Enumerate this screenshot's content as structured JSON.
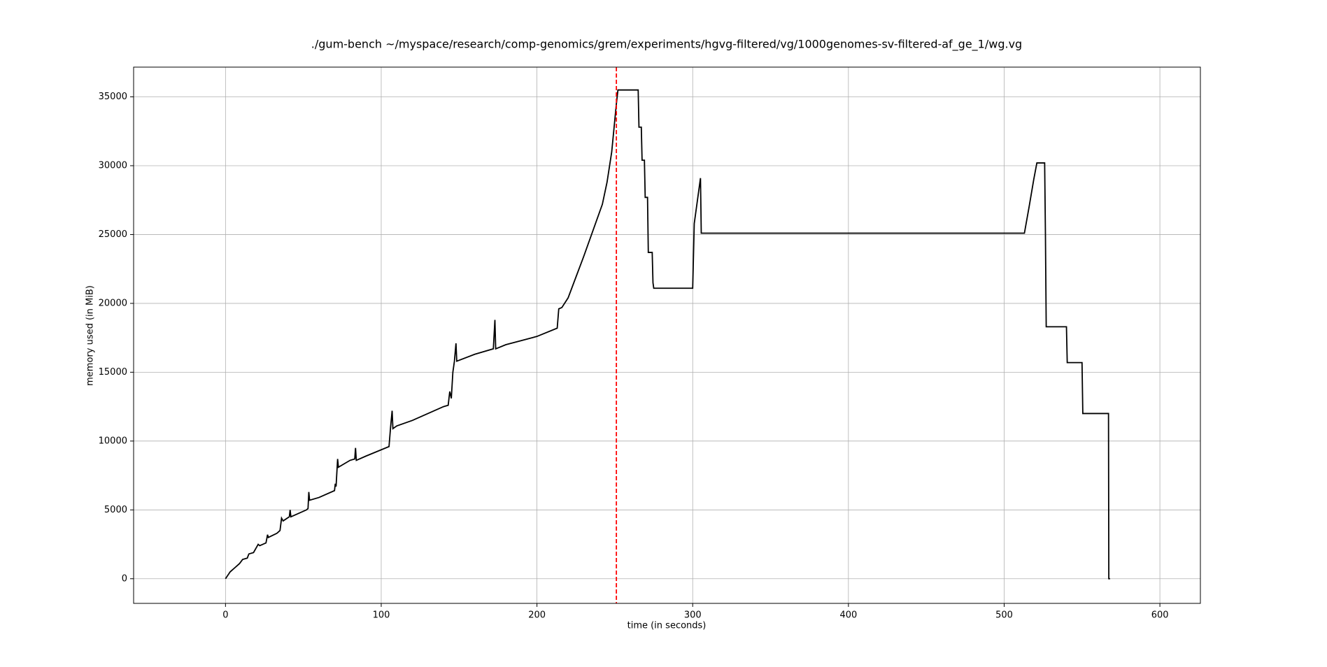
{
  "chart_data": {
    "type": "line",
    "title": "./gum-bench ~/myspace/research/comp-genomics/grem/experiments/hgvg-filtered/vg/1000genomes-sv-filtered-af_ge_1/wg.vg",
    "xlabel": "time (in seconds)",
    "ylabel": "memory used (in MiB)",
    "x": [
      0,
      3,
      6,
      9,
      11,
      14,
      15,
      18,
      20,
      21,
      22,
      26,
      27,
      27.5,
      33,
      35,
      36,
      37,
      41,
      41.5,
      42,
      52,
      53,
      53.5,
      54,
      60,
      70,
      70.5,
      71,
      72,
      72.5,
      80,
      83,
      83.5,
      84,
      90,
      105,
      106,
      107,
      107.5,
      110,
      120,
      140,
      143,
      144,
      145,
      146,
      147,
      148,
      148.5,
      160,
      172,
      173,
      173.5,
      180,
      190,
      200,
      213,
      214,
      216,
      220,
      225,
      230,
      242,
      245,
      248,
      251,
      252,
      265,
      265.5,
      267,
      267.5,
      269,
      269.5,
      271,
      271.5,
      274,
      274.5,
      275,
      300,
      301,
      305,
      305.5,
      513,
      516,
      519,
      521,
      526,
      526.5,
      527,
      540,
      540.5,
      550,
      550.5,
      567,
      567.2,
      568
    ],
    "values": [
      0,
      500,
      800,
      1100,
      1400,
      1500,
      1800,
      1900,
      2300,
      2500,
      2400,
      2600,
      3200,
      3000,
      3300,
      3500,
      4400,
      4200,
      4500,
      5000,
      4500,
      5000,
      5100,
      6300,
      5700,
      5900,
      6400,
      6900,
      6700,
      8700,
      8100,
      8600,
      8700,
      9500,
      8600,
      8900,
      9600,
      11000,
      12200,
      10900,
      11100,
      11500,
      12500,
      12600,
      13600,
      13100,
      15000,
      15800,
      17100,
      15800,
      16300,
      16700,
      18800,
      16700,
      17000,
      17300,
      17600,
      18200,
      19600,
      19700,
      20400,
      21900,
      23400,
      27200,
      28800,
      31000,
      34500,
      35500,
      35500,
      32800,
      32800,
      30400,
      30400,
      27700,
      27700,
      23700,
      23700,
      21500,
      21100,
      21100,
      25800,
      29100,
      25100,
      25100,
      27000,
      29000,
      30200,
      30200,
      25000,
      18300,
      18300,
      15700,
      15700,
      12000,
      12000,
      0,
      0
    ],
    "color": "#000000",
    "vline": {
      "x": 251,
      "color": "#ff0000",
      "style": "dashed"
    },
    "xlim": [
      -59,
      626
    ],
    "xticks": [
      0,
      100,
      200,
      300,
      400,
      500,
      600
    ],
    "ylim": [
      -1790,
      37160
    ],
    "yticks": [
      0,
      5000,
      10000,
      15000,
      20000,
      25000,
      30000,
      35000
    ],
    "grid": true
  }
}
